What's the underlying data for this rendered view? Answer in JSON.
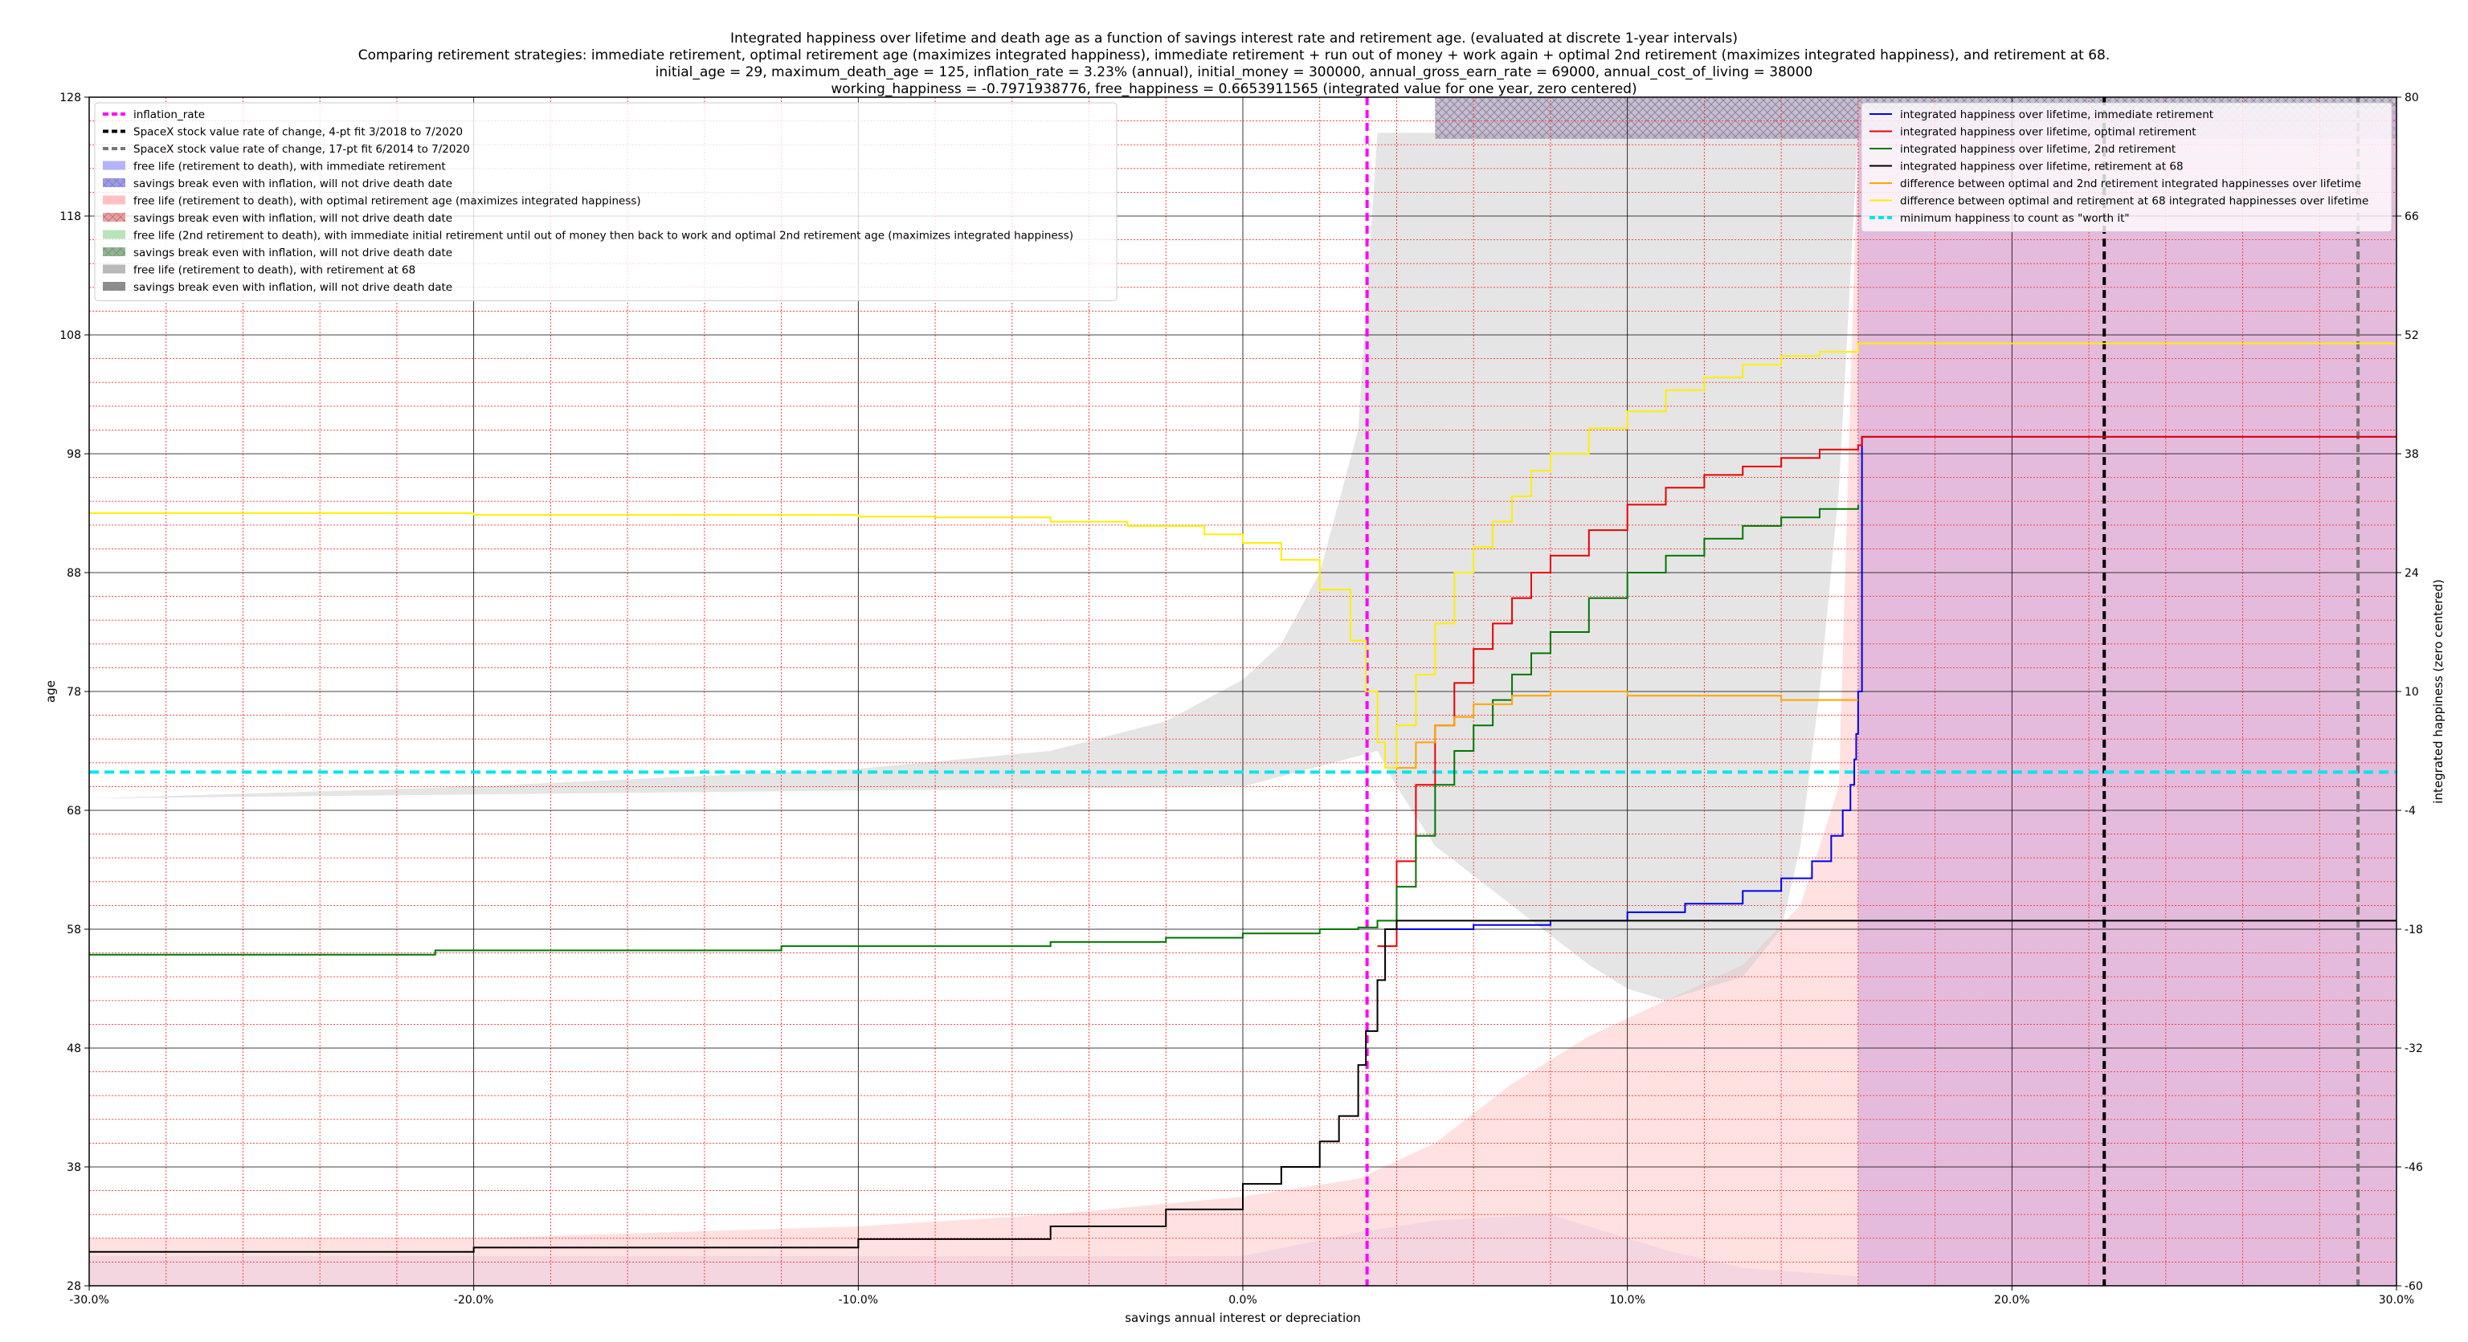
{
  "titles": {
    "line1": "Integrated happiness over lifetime and death age as a function of savings interest rate and retirement age. (evaluated at discrete 1-year intervals)",
    "line2": "Comparing retirement strategies: immediate retirement, optimal retirement age (maximizes integrated happiness), immediate retirement + run out of money + work again + optimal 2nd retirement (maximizes integrated happiness), and retirement at 68.",
    "line3": "initial_age = 29, maximum_death_age = 125, inflation_rate = 3.23% (annual), initial_money = 300000, annual_gross_earn_rate = 69000, annual_cost_of_living = 38000",
    "line4": "working_happiness = -0.7971938776, free_happiness = 0.6653911565 (integrated value for one year, zero centered)"
  },
  "chart_data": {
    "type": "line",
    "xlabel": "savings annual interest or depreciation",
    "ylabel": "age",
    "y2label": "integrated happiness (zero centered)",
    "xlim": [
      -0.3,
      0.3
    ],
    "ylim": [
      28,
      128
    ],
    "y2lim": [
      -60,
      80
    ],
    "x_ticks": [
      "-30.0%",
      "-20.0%",
      "-10.0%",
      "0.0%",
      "10.0%",
      "20.0%",
      "30.0%"
    ],
    "y_ticks": [
      "28",
      "38",
      "48",
      "58",
      "68",
      "78",
      "88",
      "98",
      "108",
      "118",
      "128"
    ],
    "y2_ticks": [
      "-60",
      "-46",
      "-32",
      "-18",
      "-4",
      "10",
      "24",
      "38",
      "52",
      "66",
      "80"
    ],
    "grid": true,
    "vertical_lines": [
      {
        "name": "inflation_rate",
        "x": 0.0323,
        "color": "#ff00ff",
        "style": "dashed"
      },
      {
        "name": "SpaceX stock value rate of change, 4-pt fit 3/2018 to 7/2020",
        "x": 0.224,
        "color": "#000000",
        "style": "dashed"
      },
      {
        "name": "SpaceX stock value rate of change, 17-pt fit 6/2014 to 7/2020",
        "x": 0.29,
        "color": "#777777",
        "style": "dashed"
      }
    ],
    "threshold": {
      "name": "minimum happiness to count as \"worth it\"",
      "y2": 0.5,
      "color": "#00e5ee"
    },
    "legend_left": [
      {
        "label": "inflation_rate",
        "kind": "dash",
        "color": "#ff00ff"
      },
      {
        "label": "SpaceX stock value rate of change, 4-pt fit 3/2018 to 7/2020",
        "kind": "dash",
        "color": "#000000"
      },
      {
        "label": "SpaceX stock value rate of change, 17-pt fit 6/2014 to 7/2020",
        "kind": "dash",
        "color": "#777777"
      },
      {
        "label": "free life (retirement to death), with immediate retirement",
        "kind": "patch",
        "color": "#a0a0ff"
      },
      {
        "label": "savings break even with inflation, will not drive death date",
        "kind": "hatch",
        "color": "#7f7fff"
      },
      {
        "label": "free life (retirement to death), with optimal retirement age (maximizes integrated happiness)",
        "kind": "patch",
        "color": "#ffb0b0"
      },
      {
        "label": "savings break even with inflation, will not drive death date",
        "kind": "hatch",
        "color": "#ff7f7f"
      },
      {
        "label": "free life (2nd retirement to death), with immediate initial retirement until out of money then back to work and optimal 2nd retirement age (maximizes integrated happiness)",
        "kind": "patch",
        "color": "#a8dca8"
      },
      {
        "label": "savings break even with inflation, will not drive death date",
        "kind": "hatch",
        "color": "#6fa86f"
      },
      {
        "label": "free life (retirement to death), with retirement at 68",
        "kind": "patch",
        "color": "#a8a8a8"
      },
      {
        "label": "savings break even with inflation, will not drive death date",
        "kind": "hatch",
        "color": "#707070"
      }
    ],
    "legend_right": [
      {
        "label": "integrated happiness over lifetime, immediate retirement",
        "color": "#0000ee"
      },
      {
        "label": "integrated happiness over lifetime, optimal retirement",
        "color": "#ee0000"
      },
      {
        "label": "integrated happiness over lifetime, 2nd retirement",
        "color": "#007700"
      },
      {
        "label": "integrated happiness over lifetime, retirement at 68",
        "color": "#000000"
      },
      {
        "label": "difference between optimal and 2nd retirement integrated happinesses over lifetime",
        "color": "#ffa500"
      },
      {
        "label": "difference between optimal and retirement at 68 integrated happinesses over lifetime",
        "color": "#ffee00"
      },
      {
        "label": "minimum happiness to count as \"worth it\"",
        "color": "#00e5ee",
        "dashed": true
      }
    ],
    "regions": [
      {
        "name": "free-life-immediate",
        "color": "#c8c8ff",
        "opacity": 0.45,
        "points": [
          [
            -0.3,
            30.5
          ],
          [
            0.0,
            30.5
          ],
          [
            0.03,
            32.5
          ],
          [
            0.05,
            33.5
          ],
          [
            0.08,
            34
          ],
          [
            0.11,
            31
          ],
          [
            0.13,
            29.5
          ],
          [
            0.16,
            28.8
          ],
          [
            0.16,
            125
          ],
          [
            0.3,
            125
          ],
          [
            0.3,
            28
          ],
          [
            -0.3,
            28
          ]
        ]
      },
      {
        "name": "free-life-optimal",
        "color": "#ffc8c8",
        "opacity": 0.55,
        "points": [
          [
            -0.3,
            28
          ],
          [
            -0.3,
            32
          ],
          [
            -0.2,
            32
          ],
          [
            -0.1,
            33
          ],
          [
            -0.05,
            34
          ],
          [
            0.0,
            35.5
          ],
          [
            0.03,
            37
          ],
          [
            0.05,
            40
          ],
          [
            0.07,
            45
          ],
          [
            0.09,
            49
          ],
          [
            0.11,
            52
          ],
          [
            0.13,
            55
          ],
          [
            0.145,
            60
          ],
          [
            0.155,
            70
          ],
          [
            0.16,
            125
          ],
          [
            0.3,
            125
          ],
          [
            0.3,
            28
          ]
        ]
      },
      {
        "name": "free-life-at-68",
        "color": "#d0d0d0",
        "opacity": 0.55,
        "points": [
          [
            -0.3,
            69
          ],
          [
            -0.2,
            70
          ],
          [
            -0.1,
            71.5
          ],
          [
            -0.05,
            73
          ],
          [
            -0.02,
            75.5
          ],
          [
            0.0,
            79
          ],
          [
            0.01,
            82
          ],
          [
            0.02,
            88
          ],
          [
            0.03,
            100
          ],
          [
            0.035,
            125
          ],
          [
            0.16,
            125
          ],
          [
            0.155,
            95
          ],
          [
            0.15,
            78
          ],
          [
            0.145,
            65
          ],
          [
            0.14,
            58
          ],
          [
            0.13,
            54
          ],
          [
            0.12,
            53
          ],
          [
            0.11,
            52
          ],
          [
            0.1,
            53
          ],
          [
            0.09,
            55
          ],
          [
            0.07,
            60
          ],
          [
            0.05,
            65
          ],
          [
            0.04,
            70
          ],
          [
            0.035,
            73
          ],
          [
            0.0,
            70
          ],
          [
            -0.3,
            69
          ]
        ]
      },
      {
        "name": "break-even-hatch",
        "color": "#b0a0c8",
        "opacity": 0.7,
        "points": [
          [
            0.05,
            124.5
          ],
          [
            0.3,
            124.5
          ],
          [
            0.3,
            128
          ],
          [
            0.05,
            128
          ]
        ]
      },
      {
        "name": "free-life-purple",
        "color": "#d8a8d8",
        "opacity": 0.6,
        "points": [
          [
            0.16,
            28
          ],
          [
            0.3,
            28
          ],
          [
            0.3,
            127
          ],
          [
            0.16,
            127
          ]
        ]
      }
    ],
    "series": [
      {
        "name": "immediate",
        "color": "#0000ee",
        "axis": "y2",
        "x": [
          0.04,
          0.06,
          0.08,
          0.1,
          0.115,
          0.13,
          0.14,
          0.148,
          0.153,
          0.156,
          0.158,
          0.159,
          0.1595,
          0.16,
          0.161,
          0.3
        ],
        "y": [
          -18,
          -17.5,
          -17,
          -16,
          -15,
          -13.5,
          -12,
          -10,
          -7,
          -4,
          -1,
          2,
          5,
          10,
          40,
          40
        ]
      },
      {
        "name": "optimal",
        "color": "#ee0000",
        "axis": "y2",
        "x": [
          0.035,
          0.04,
          0.045,
          0.05,
          0.055,
          0.06,
          0.065,
          0.07,
          0.075,
          0.08,
          0.09,
          0.1,
          0.11,
          0.12,
          0.13,
          0.14,
          0.15,
          0.16,
          0.161,
          0.3
        ],
        "y": [
          -20,
          -10,
          -1,
          6,
          11,
          15,
          18,
          21,
          24,
          26,
          29,
          32,
          34,
          35.5,
          36.5,
          37.5,
          38.5,
          39,
          40,
          40
        ]
      },
      {
        "name": "second",
        "color": "#007700",
        "axis": "y2",
        "x": [
          -0.3,
          -0.21,
          -0.12,
          -0.05,
          -0.02,
          0.0,
          0.02,
          0.03,
          0.035,
          0.04,
          0.045,
          0.05,
          0.055,
          0.06,
          0.065,
          0.07,
          0.075,
          0.08,
          0.09,
          0.1,
          0.11,
          0.12,
          0.13,
          0.14,
          0.15,
          0.16
        ],
        "y": [
          -21,
          -20.5,
          -20,
          -19.5,
          -19,
          -18.5,
          -18,
          -17.8,
          -17,
          -13,
          -7,
          -1,
          3,
          6,
          9,
          12,
          14.5,
          17,
          21,
          24,
          26,
          28,
          29.5,
          30.5,
          31.5,
          32
        ]
      },
      {
        "name": "at68",
        "color": "#000000",
        "axis": "y2",
        "x": [
          -0.3,
          -0.2,
          -0.1,
          -0.05,
          -0.02,
          0.0,
          0.01,
          0.02,
          0.025,
          0.03,
          0.032,
          0.035,
          0.037,
          0.04,
          0.3
        ],
        "y": [
          -56,
          -55.5,
          -54.5,
          -53,
          -51,
          -48,
          -46,
          -43,
          -40,
          -34,
          -30,
          -24,
          -18,
          -17,
          -17
        ]
      },
      {
        "name": "diff-opt-2nd",
        "color": "#ffa500",
        "axis": "y2",
        "x": [
          0.04,
          0.045,
          0.05,
          0.055,
          0.06,
          0.07,
          0.08,
          0.09,
          0.1,
          0.12,
          0.14,
          0.16
        ],
        "y": [
          1,
          4,
          6,
          7,
          8.5,
          9.5,
          10,
          10,
          9.5,
          9.5,
          9,
          9
        ]
      },
      {
        "name": "diff-opt-68",
        "color": "#ffee00",
        "axis": "y2",
        "x": [
          -0.3,
          -0.25,
          -0.2,
          -0.15,
          -0.1,
          -0.08,
          -0.05,
          -0.03,
          -0.01,
          0.0,
          0.01,
          0.02,
          0.028,
          0.032,
          0.035,
          0.037,
          0.04,
          0.045,
          0.05,
          0.055,
          0.06,
          0.065,
          0.07,
          0.075,
          0.08,
          0.09,
          0.1,
          0.11,
          0.12,
          0.13,
          0.14,
          0.15,
          0.16,
          0.3
        ],
        "y": [
          31,
          31,
          30.8,
          30.8,
          30.6,
          30.5,
          30,
          29.5,
          28.5,
          27.5,
          25.5,
          22,
          16,
          10,
          4,
          1,
          6,
          12,
          18,
          24,
          27,
          30,
          33,
          36,
          38,
          41,
          43,
          45.5,
          47,
          48.5,
          49.5,
          50,
          51,
          51
        ]
      }
    ]
  }
}
